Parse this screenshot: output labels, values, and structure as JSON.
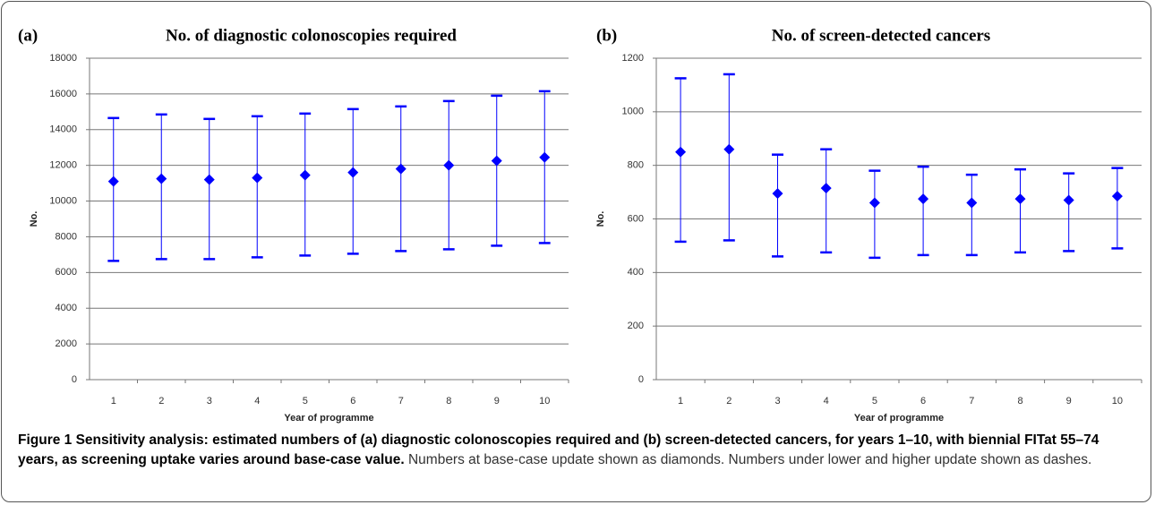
{
  "chart_data": [
    {
      "type": "errorbar",
      "panel": "(a)",
      "title": "No. of diagnostic colonoscopies required",
      "y_label": "No.",
      "x_label": "Year of programme",
      "categories": [
        "1",
        "2",
        "3",
        "4",
        "5",
        "6",
        "7",
        "8",
        "9",
        "10"
      ],
      "values": [
        11100,
        11250,
        11200,
        11300,
        11450,
        11600,
        11800,
        12000,
        12250,
        12450
      ],
      "low": [
        6650,
        6750,
        6750,
        6850,
        6950,
        7050,
        7200,
        7300,
        7500,
        7650
      ],
      "high": [
        14650,
        14850,
        14600,
        14750,
        14900,
        15150,
        15300,
        15600,
        15900,
        16150
      ],
      "color": "#0000ff",
      "ylim": [
        0,
        18000
      ],
      "yticks": [
        0,
        2000,
        4000,
        6000,
        8000,
        10000,
        12000,
        14000,
        16000,
        18000
      ],
      "grid": true
    },
    {
      "type": "errorbar",
      "panel": "(b)",
      "title": "No. of screen-detected cancers",
      "y_label": "No.",
      "x_label": "Year of programme",
      "categories": [
        "1",
        "2",
        "3",
        "4",
        "5",
        "6",
        "7",
        "8",
        "9",
        "10"
      ],
      "values": [
        850,
        860,
        695,
        715,
        660,
        675,
        660,
        675,
        670,
        685
      ],
      "low": [
        515,
        520,
        460,
        475,
        455,
        465,
        465,
        475,
        480,
        490
      ],
      "high": [
        1125,
        1140,
        840,
        860,
        780,
        795,
        765,
        785,
        770,
        790
      ],
      "color": "#0000ff",
      "ylim": [
        0,
        1200
      ],
      "yticks": [
        0,
        200,
        400,
        600,
        800,
        1000,
        1200
      ],
      "grid": true
    }
  ],
  "caption": {
    "bold": "Figure 1 Sensitivity analysis: estimated numbers of (a) diagnostic colonoscopies required and (b) screen-detected cancers, for years 1–10, with biennial FITat 55–74 years, as screening uptake varies around base-case value.",
    "text": "Numbers at base-case update shown as diamonds. Numbers under lower and higher update shown as dashes."
  }
}
